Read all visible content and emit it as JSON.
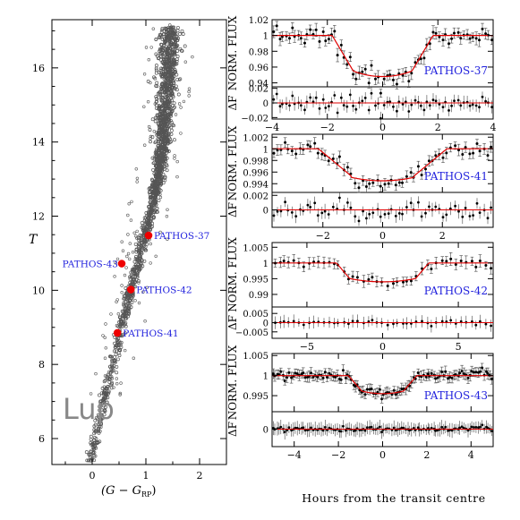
{
  "chart_data": [
    {
      "type": "scatter",
      "name": "cmd",
      "xlabel": "(G − G_RP)",
      "ylabel": "T",
      "xlim": [
        -0.75,
        2.5
      ],
      "ylim": [
        17.3,
        5.3
      ],
      "y_inverted": true,
      "xticks": [
        "0",
        "1",
        "2"
      ],
      "yticks": [
        "6",
        "8",
        "10",
        "12",
        "14",
        "16"
      ],
      "annotation": "Lup",
      "highlighted": [
        {
          "label": "PATHOS-41",
          "x": 0.47,
          "y": 8.85
        },
        {
          "label": "PATHOS-42",
          "x": 0.72,
          "y": 10.02
        },
        {
          "label": "PATHOS-43",
          "x": 0.55,
          "y": 10.72
        },
        {
          "label": "PATHOS-37",
          "x": 1.05,
          "y": 11.48
        }
      ],
      "colors": {
        "points": "#555555",
        "highlight": "#ee0000",
        "labels": "#2222dd"
      }
    },
    {
      "type": "scatter",
      "name": "PATHOS-37",
      "label": "PATHOS-37",
      "ylabel": "NORM. FLUX",
      "residual_ylabel": "ΔF",
      "xlim": [
        -4,
        4
      ],
      "xticks": [
        "−4",
        "−2",
        "0",
        "2",
        "4"
      ],
      "ylim": [
        0.935,
        1.02
      ],
      "yticks": [
        "0.94",
        "0.96",
        "0.98",
        "1",
        "1.02"
      ],
      "residual_ylim": [
        -0.022,
        0.022
      ],
      "residual_yticks": [
        "−0.02",
        "0",
        "0.02"
      ],
      "model": {
        "depth": 0.052,
        "half_width": 1.45,
        "ingress": 0.75
      },
      "binned_points": 72
    },
    {
      "type": "scatter",
      "name": "PATHOS-41",
      "label": "PATHOS-41",
      "ylabel": "NORM. FLUX",
      "residual_ylabel": "ΔF",
      "xlim": [
        -3.7,
        3.7
      ],
      "xticks": [
        "−2",
        "0",
        "2"
      ],
      "ylim": [
        0.9925,
        1.0025
      ],
      "yticks": [
        "0.994",
        "0.996",
        "0.998",
        "1",
        "1.002"
      ],
      "residual_ylim": [
        -0.0024,
        0.0024
      ],
      "residual_yticks": [
        "0",
        "0.002"
      ],
      "model": {
        "depth": 0.0055,
        "half_width": 1.6,
        "ingress": 1.1
      },
      "binned_points": 60
    },
    {
      "type": "scatter",
      "name": "PATHOS-42",
      "label": "PATHOS-42",
      "ylabel": "NORM. FLUX",
      "residual_ylabel": "ΔF",
      "xlim": [
        -7.3,
        7.3
      ],
      "xticks": [
        "−5",
        "0",
        "5"
      ],
      "ylim": [
        0.986,
        1.0065
      ],
      "yticks": [
        "0.99",
        "0.995",
        "1",
        "1.005"
      ],
      "residual_ylim": [
        -0.0085,
        0.0085
      ],
      "residual_yticks": [
        "−0.005",
        "0",
        "0.005"
      ],
      "model": {
        "depth": 0.006,
        "half_width": 2.6,
        "ingress": 0.9
      },
      "binned_points": 45
    },
    {
      "type": "scatter",
      "name": "PATHOS-43",
      "label": "PATHOS-43",
      "ylabel": "NORM. FLUX",
      "residual_ylabel": "ΔF",
      "xlabel": "Hours from the transit centre",
      "xlim": [
        -5,
        5
      ],
      "xticks": [
        "−4",
        "−2",
        "0",
        "2",
        "4"
      ],
      "ylim": [
        0.991,
        1.0055
      ],
      "yticks": [
        "0.995",
        "1",
        "1.005"
      ],
      "residual_ylim": [
        -0.008,
        0.008
      ],
      "residual_yticks": [
        "0"
      ],
      "model": {
        "depth": 0.0045,
        "half_width": 1.25,
        "ingress": 0.6
      },
      "binned_points": 110
    }
  ],
  "labels": {
    "flux_ylabel": "NORM. FLUX",
    "delta_label": "ΔF",
    "cmd_ylabel": "T",
    "cmd_xlabel_main": "(G − G",
    "cmd_xlabel_sub": "RP",
    "cmd_xlabel_end": ")",
    "time_xlabel": "Hours from the transit centre",
    "cluster": "Lup"
  }
}
